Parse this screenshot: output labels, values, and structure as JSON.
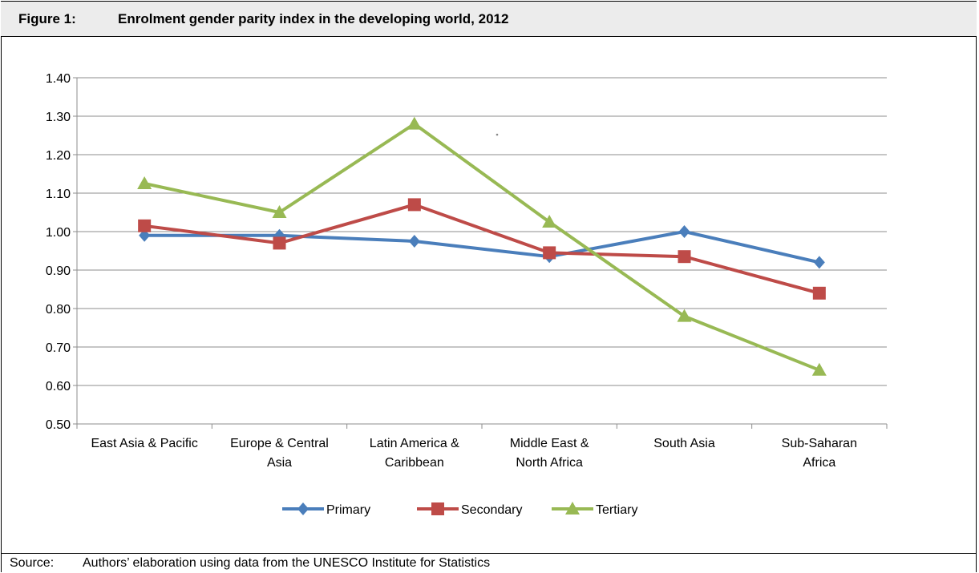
{
  "figure": {
    "label": "Figure 1:",
    "title": "Enrolment gender parity index in the developing world, 2012"
  },
  "source": {
    "label": "Source:",
    "text": "Authors’ elaboration using data from the UNESCO Institute for Statistics"
  },
  "colors": {
    "header_bg": "#ececec",
    "grid": "#8c8c8c",
    "primary": "#4a7ebb",
    "secondary": "#be4b48",
    "tertiary": "#98b954"
  },
  "chart_data": {
    "type": "line",
    "categories": [
      [
        "East Asia & Pacific"
      ],
      [
        "Europe & Central",
        "Asia"
      ],
      [
        "Latin America &",
        "Caribbean"
      ],
      [
        "Middle East &",
        "North Africa"
      ],
      [
        "South Asia"
      ],
      [
        "Sub-Saharan",
        "Africa"
      ]
    ],
    "series": [
      {
        "name": "Primary",
        "marker": "diamond",
        "color": "#4a7ebb",
        "values": [
          0.99,
          0.99,
          0.975,
          0.935,
          1.0,
          0.92
        ]
      },
      {
        "name": "Secondary",
        "marker": "square",
        "color": "#be4b48",
        "values": [
          1.015,
          0.97,
          1.07,
          0.945,
          0.935,
          0.84
        ]
      },
      {
        "name": "Tertiary",
        "marker": "triangle",
        "color": "#98b954",
        "values": [
          1.125,
          1.05,
          1.28,
          1.025,
          0.78,
          0.64
        ]
      }
    ],
    "ylim": [
      0.5,
      1.4
    ],
    "yticks": [
      "0.50",
      "0.60",
      "0.70",
      "0.80",
      "0.90",
      "1.00",
      "1.10",
      "1.20",
      "1.30",
      "1.40"
    ],
    "grid": true,
    "legend": "bottom",
    "title": "",
    "xlabel": "",
    "ylabel": ""
  }
}
